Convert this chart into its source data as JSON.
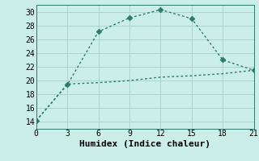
{
  "title": "",
  "xlabel": "Humidex (Indice chaleur)",
  "background_color": "#cceee8",
  "grid_color": "#aad4ce",
  "line_color": "#2d7a6e",
  "xlim": [
    0,
    21
  ],
  "ylim": [
    13,
    31
  ],
  "xticks": [
    0,
    3,
    6,
    9,
    12,
    15,
    18,
    21
  ],
  "yticks": [
    14,
    16,
    18,
    20,
    22,
    24,
    26,
    28,
    30
  ],
  "series1_x": [
    0,
    3,
    6,
    9,
    12,
    15,
    18,
    21
  ],
  "series1_y": [
    14.2,
    19.4,
    27.1,
    29.1,
    30.3,
    29.0,
    23.0,
    21.5
  ],
  "series2_x": [
    0,
    3,
    6,
    9,
    12,
    15,
    18,
    21
  ],
  "series2_y": [
    14.2,
    19.5,
    19.7,
    20.0,
    20.5,
    20.7,
    21.0,
    21.5
  ],
  "marker_size": 3.5,
  "line_width": 1.0,
  "tick_fontsize": 7,
  "xlabel_fontsize": 8
}
